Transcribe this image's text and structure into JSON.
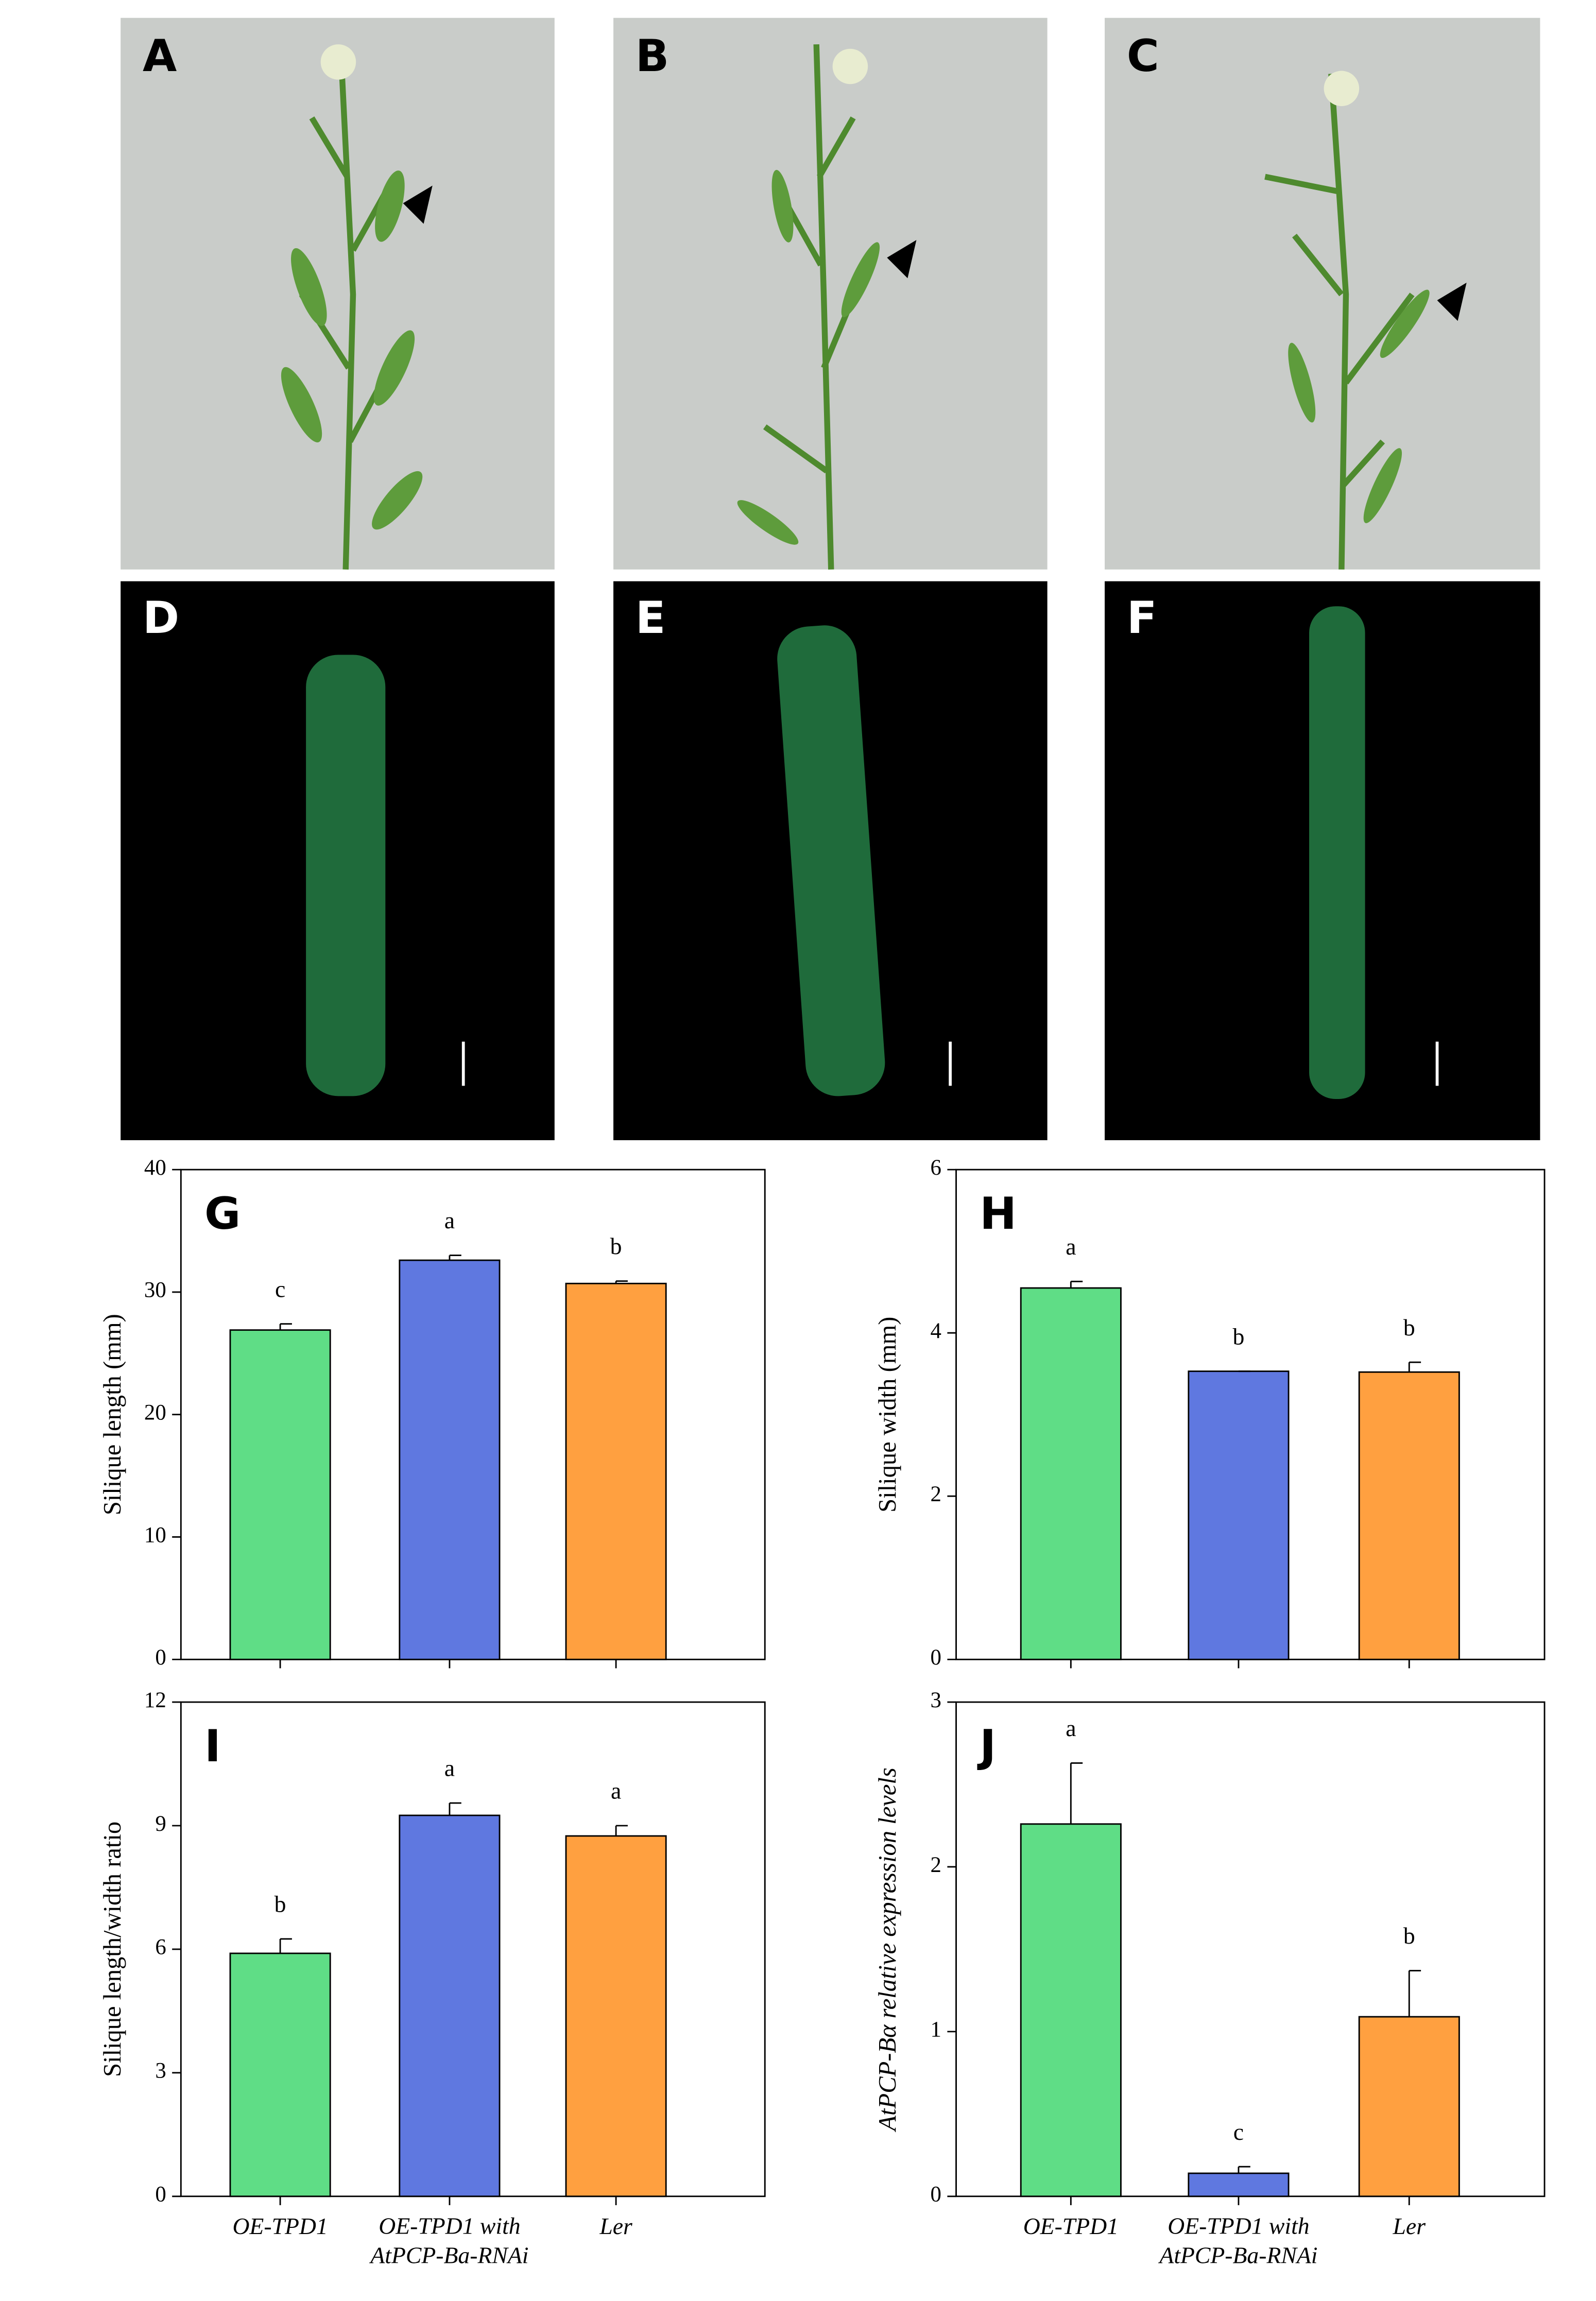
{
  "photo_panels": [
    "A",
    "B",
    "C",
    "D",
    "E",
    "F"
  ],
  "chart_data": [
    {
      "type": "bar",
      "panel": "G",
      "ylabel": "Silique length (mm)",
      "values": [
        26.9,
        32.6,
        30.7
      ],
      "errors": [
        0.5,
        0.4,
        0.2
      ],
      "significance": [
        "c",
        "a",
        "b"
      ],
      "colors": [
        "#5fdd86",
        "#5f78e0",
        "#ffa040"
      ],
      "ylim": [
        0,
        40
      ],
      "yticks": [
        0,
        10,
        20,
        30,
        40
      ]
    },
    {
      "type": "bar",
      "panel": "H",
      "ylabel": "Silique width (mm)",
      "values": [
        4.55,
        3.53,
        3.52
      ],
      "errors": [
        0.08,
        0,
        0.12
      ],
      "significance": [
        "a",
        "b",
        "b"
      ],
      "colors": [
        "#5fdd86",
        "#5f78e0",
        "#ffa040"
      ],
      "ylim": [
        0,
        6
      ],
      "yticks": [
        0,
        2,
        4,
        6
      ]
    },
    {
      "type": "bar",
      "panel": "I",
      "ylabel": "Silique length/width ratio",
      "categories": [
        "OE-TPD1",
        [
          "OE-TPD1 with",
          "AtPCP-Ba-RNAi"
        ],
        "Ler"
      ],
      "values": [
        5.9,
        9.25,
        8.75
      ],
      "errors": [
        0.35,
        0.3,
        0.25
      ],
      "significance": [
        "b",
        "a",
        "a"
      ],
      "colors": [
        "#5fdd86",
        "#5f78e0",
        "#ffa040"
      ],
      "ylim": [
        0,
        12
      ],
      "yticks": [
        0,
        3,
        6,
        9,
        12
      ]
    },
    {
      "type": "bar",
      "panel": "J",
      "ylabel": "AtPCP-Bα relative expression levels",
      "categories": [
        "OE-TPD1",
        [
          "OE-TPD1 with",
          "AtPCP-Ba-RNAi"
        ],
        "Ler"
      ],
      "values": [
        2.26,
        0.14,
        1.09
      ],
      "errors": [
        0.37,
        0.04,
        0.28
      ],
      "significance": [
        "a",
        "c",
        "b"
      ],
      "colors": [
        "#5fdd86",
        "#5f78e0",
        "#ffa040"
      ],
      "ylim": [
        0,
        3
      ],
      "yticks": [
        0,
        1,
        2,
        3
      ]
    }
  ]
}
